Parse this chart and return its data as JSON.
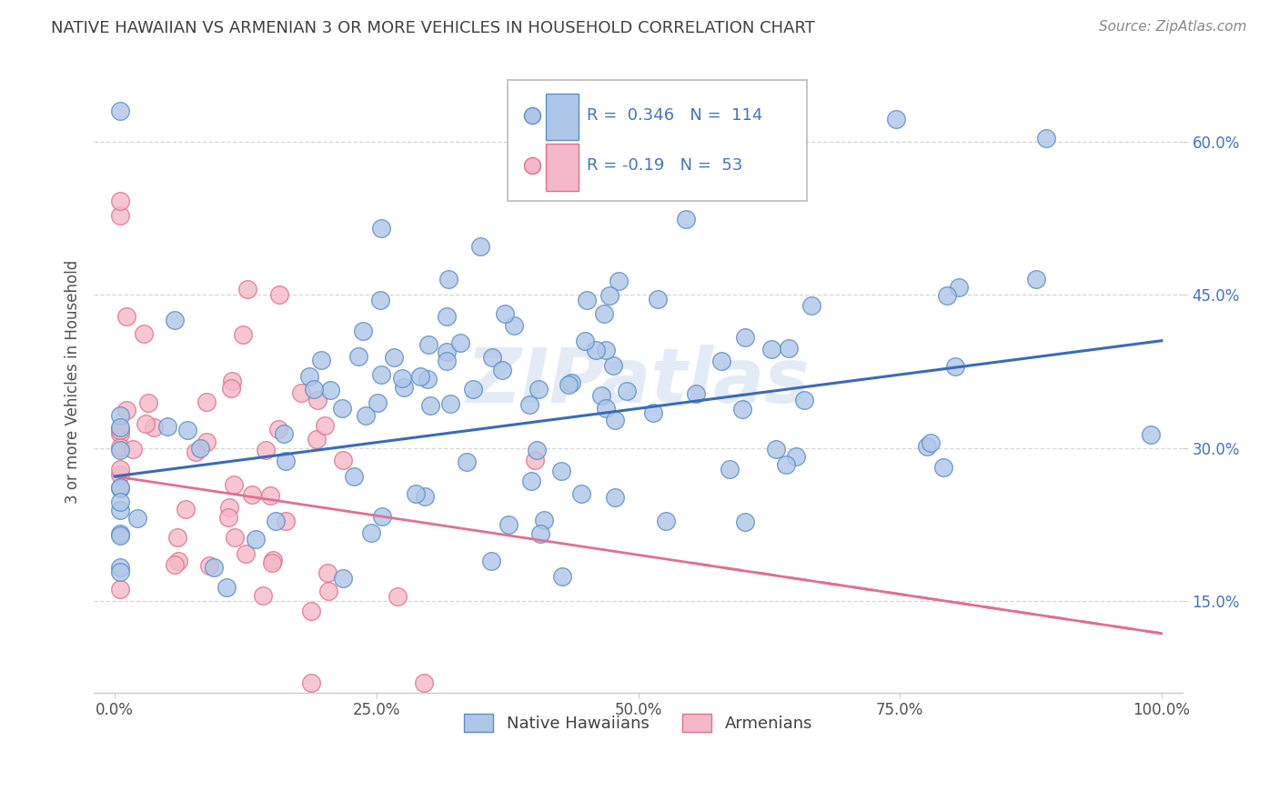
{
  "title": "NATIVE HAWAIIAN VS ARMENIAN 3 OR MORE VEHICLES IN HOUSEHOLD CORRELATION CHART",
  "source": "Source: ZipAtlas.com",
  "ylabel": "3 or more Vehicles in Household",
  "blue_R": 0.346,
  "blue_N": 114,
  "pink_R": -0.19,
  "pink_N": 53,
  "blue_color": "#aec6e8",
  "blue_edge_color": "#5b8ec4",
  "blue_line_color": "#3a6bba",
  "pink_color": "#f5b8c8",
  "pink_edge_color": "#e0708a",
  "pink_line_color": "#e07090",
  "title_color": "#404040",
  "legend_R_color": "#4472c4",
  "source_color": "#888888",
  "watermark_color": "#c8d8f0",
  "ytick_color": "#4472c4",
  "xtick_labels": [
    "0.0%",
    "25.0%",
    "50.0%",
    "75.0%",
    "100.0%"
  ],
  "ytick_labels": [
    "15.0%",
    "30.0%",
    "45.0%",
    "60.0%"
  ],
  "ytick_values": [
    0.15,
    0.3,
    0.45,
    0.6
  ],
  "xlim": [
    -0.02,
    1.02
  ],
  "ylim": [
    0.06,
    0.67
  ],
  "blue_line_x0": 0.0,
  "blue_line_x1": 1.0,
  "blue_line_y0": 0.272,
  "blue_line_y1": 0.405,
  "pink_line_x0": 0.0,
  "pink_line_x1": 1.0,
  "pink_line_y0": 0.272,
  "pink_line_y1": 0.118
}
